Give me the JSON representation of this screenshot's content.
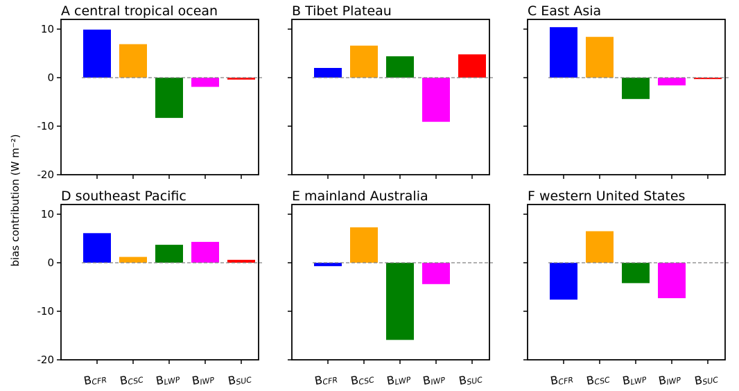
{
  "figure": {
    "ylabel": "bias contribution (W m⁻²)"
  },
  "chart_data": [
    {
      "type": "bar",
      "title": "A central tropical ocean",
      "categories": [
        "BCFR",
        "BCSC",
        "BLWP",
        "BIWP",
        "BSUC"
      ],
      "values": [
        9.9,
        6.9,
        -8.3,
        -1.9,
        -0.4
      ],
      "colors": [
        "#0000ff",
        "#ffa500",
        "#008000",
        "#ff00ff",
        "#ff0000"
      ],
      "ylim": [
        -20,
        12
      ],
      "yticks": [
        10,
        0,
        -10,
        -20
      ]
    },
    {
      "type": "bar",
      "title": "B Tibet Plateau",
      "categories": [
        "BCFR",
        "BCSC",
        "BLWP",
        "BIWP",
        "BSUC"
      ],
      "values": [
        2.0,
        6.6,
        4.4,
        -9.1,
        4.8
      ],
      "colors": [
        "#0000ff",
        "#ffa500",
        "#008000",
        "#ff00ff",
        "#ff0000"
      ],
      "ylim": [
        -20,
        12
      ],
      "yticks": [
        10,
        0,
        -10,
        -20
      ]
    },
    {
      "type": "bar",
      "title": "C East Asia",
      "categories": [
        "BCFR",
        "BCSC",
        "BLWP",
        "BIWP",
        "BSUC"
      ],
      "values": [
        10.4,
        8.4,
        -4.4,
        -1.6,
        -0.3
      ],
      "colors": [
        "#0000ff",
        "#ffa500",
        "#008000",
        "#ff00ff",
        "#ff0000"
      ],
      "ylim": [
        -20,
        12
      ],
      "yticks": [
        10,
        0,
        -10,
        -20
      ]
    },
    {
      "type": "bar",
      "title": "D southeast Pacific",
      "categories": [
        "BCFR",
        "BCSC",
        "BLWP",
        "BIWP",
        "BSUC"
      ],
      "values": [
        6.1,
        1.2,
        3.7,
        4.3,
        0.6
      ],
      "colors": [
        "#0000ff",
        "#ffa500",
        "#008000",
        "#ff00ff",
        "#ff0000"
      ],
      "ylim": [
        -20,
        12
      ],
      "yticks": [
        10,
        0,
        -10,
        -20
      ]
    },
    {
      "type": "bar",
      "title": "E mainland Australia",
      "categories": [
        "BCFR",
        "BCSC",
        "BLWP",
        "BIWP",
        "BSUC"
      ],
      "values": [
        -0.7,
        7.3,
        -15.9,
        -4.4,
        0.0
      ],
      "colors": [
        "#0000ff",
        "#ffa500",
        "#008000",
        "#ff00ff",
        "#ff0000"
      ],
      "ylim": [
        -20,
        12
      ],
      "yticks": [
        10,
        0,
        -10,
        -20
      ]
    },
    {
      "type": "bar",
      "title": "F western United States",
      "categories": [
        "BCFR",
        "BCSC",
        "BLWP",
        "BIWP",
        "BSUC"
      ],
      "values": [
        -7.6,
        6.5,
        -4.2,
        -7.3,
        0.0
      ],
      "colors": [
        "#0000ff",
        "#ffa500",
        "#008000",
        "#ff00ff",
        "#ff0000"
      ],
      "ylim": [
        -20,
        12
      ],
      "yticks": [
        10,
        0,
        -10,
        -20
      ]
    }
  ]
}
